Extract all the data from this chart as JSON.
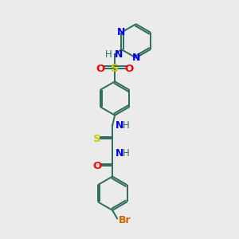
{
  "background_color": "#ebebeb",
  "bond_color": "#2d6b5e",
  "N_color": "#0000ee",
  "O_color": "#ff0000",
  "S_color": "#cccc00",
  "Br_color": "#cc6600",
  "H_color": "#2d6b5e",
  "line_width": 1.4,
  "font_size": 8.5,
  "fig_width": 3.0,
  "fig_height": 3.0,
  "dpi": 100,
  "xlim": [
    0,
    10
  ],
  "ylim": [
    0,
    10
  ]
}
